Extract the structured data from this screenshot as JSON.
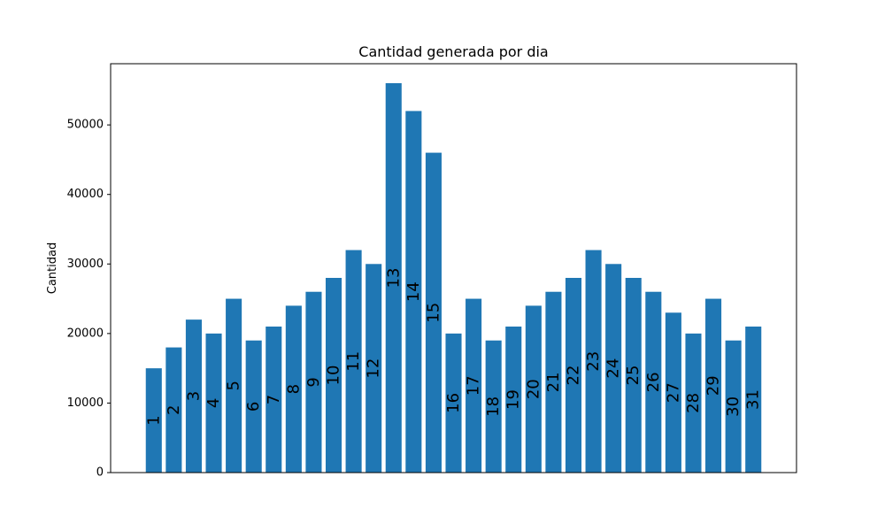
{
  "chart_data": {
    "type": "bar",
    "title": "Cantidad generada por dia",
    "xlabel": "",
    "ylabel": "Cantidad",
    "ylim": [
      0,
      58800
    ],
    "yticks": [
      0,
      10000,
      20000,
      30000,
      40000,
      50000
    ],
    "ytick_labels": [
      "0",
      "10000",
      "20000",
      "30000",
      "40000",
      "50000"
    ],
    "x_ticks_visible": false,
    "grid": false,
    "legend": "none",
    "bar_color": "#1f77b4",
    "categories": [
      "1",
      "2",
      "3",
      "4",
      "5",
      "6",
      "7",
      "8",
      "9",
      "10",
      "11",
      "12",
      "13",
      "14",
      "15",
      "16",
      "17",
      "18",
      "19",
      "20",
      "21",
      "22",
      "23",
      "24",
      "25",
      "26",
      "27",
      "28",
      "29",
      "30",
      "31"
    ],
    "values": [
      15000,
      18000,
      22000,
      20000,
      25000,
      19000,
      21000,
      24000,
      26000,
      28000,
      32000,
      30000,
      56000,
      52000,
      46000,
      20000,
      25000,
      19000,
      21000,
      24000,
      26000,
      28000,
      32000,
      30000,
      28000,
      26000,
      23000,
      20000,
      25000,
      19000,
      21000
    ],
    "bar_labels": [
      "1",
      "2",
      "3",
      "4",
      "5",
      "6",
      "7",
      "8",
      "9",
      "10",
      "11",
      "12",
      "13",
      "14",
      "15",
      "16",
      "17",
      "18",
      "19",
      "20",
      "21",
      "22",
      "23",
      "24",
      "25",
      "26",
      "27",
      "28",
      "29",
      "30",
      "31"
    ]
  }
}
